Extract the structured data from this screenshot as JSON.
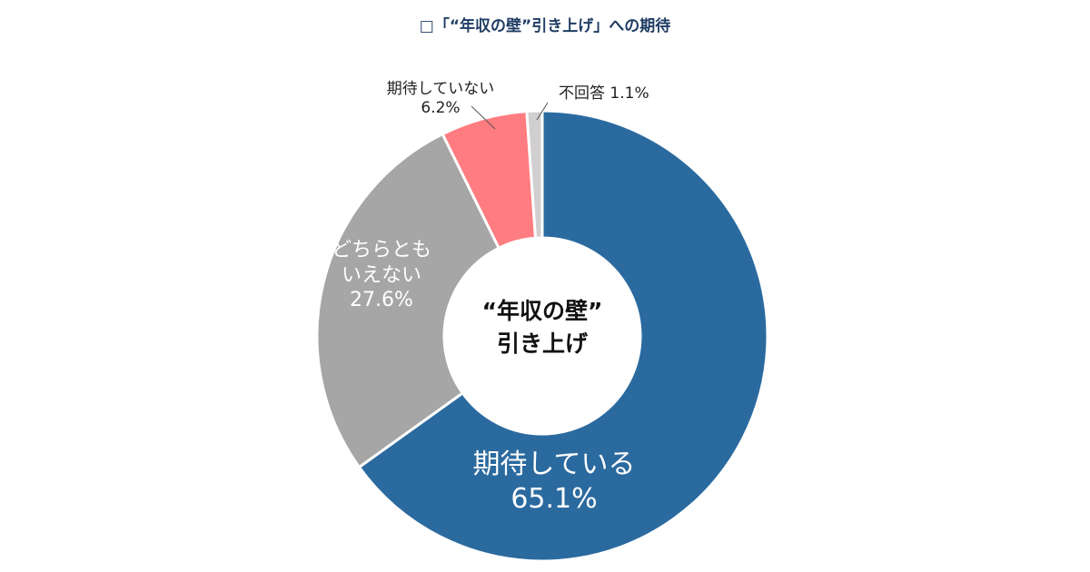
{
  "chart_data": {
    "type": "pie",
    "title": "□「“年収の壁”引き上げ」への期待",
    "center_label": [
      "“年収の壁”",
      "引き上げ"
    ],
    "slices": [
      {
        "label": "期待している",
        "value": 65.1,
        "value_label": "65.1%",
        "color": "#2b6a9f"
      },
      {
        "label": "どちらとも いえない",
        "label_lines": [
          "どちらとも",
          "いえない"
        ],
        "value": 27.6,
        "value_label": "27.6%",
        "color": "#a6a6a6"
      },
      {
        "label": "期待していない",
        "value": 6.2,
        "value_label": "6.2%",
        "color": "#ff7c80"
      },
      {
        "label": "不回答",
        "value": 1.1,
        "value_label": "1.1%",
        "color": "#d0cece"
      }
    ],
    "start_angle_deg": 0,
    "direction": "clockwise",
    "donut": true
  }
}
